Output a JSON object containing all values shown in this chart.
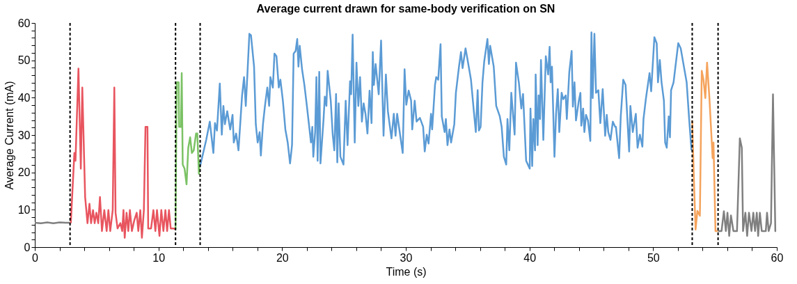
{
  "chart_data": {
    "type": "line",
    "title": "Average current drawn for same-body verification on SN",
    "xlabel": "Time (s)",
    "ylabel": "Average Current (mA)",
    "xlim": [
      0,
      60
    ],
    "ylim": [
      0,
      60
    ],
    "xticks": [
      0,
      {
        "value": 2,
        "label": null
      },
      {
        "value": 4,
        "label": null
      },
      {
        "value": 6,
        "label": null
      },
      {
        "value": 8,
        "label": null
      },
      10,
      {
        "value": 12,
        "label": null
      },
      {
        "value": 14,
        "label": null
      },
      {
        "value": 16,
        "label": null
      },
      {
        "value": 18,
        "label": null
      },
      20,
      {
        "value": 22,
        "label": null
      },
      {
        "value": 24,
        "label": null
      },
      {
        "value": 26,
        "label": null
      },
      {
        "value": 28,
        "label": null
      },
      30,
      {
        "value": 32,
        "label": null
      },
      {
        "value": 34,
        "label": null
      },
      {
        "value": 36,
        "label": null
      },
      {
        "value": 38,
        "label": null
      },
      40,
      {
        "value": 42,
        "label": null
      },
      {
        "value": 44,
        "label": null
      },
      {
        "value": 46,
        "label": null
      },
      {
        "value": 48,
        "label": null
      },
      50,
      {
        "value": 52,
        "label": null
      },
      {
        "value": 54,
        "label": null
      },
      {
        "value": 56,
        "label": null
      },
      {
        "value": 58,
        "label": null
      },
      60
    ],
    "yticks": [
      0,
      {
        "value": 2,
        "label": null
      },
      {
        "value": 4,
        "label": null
      },
      {
        "value": 6,
        "label": null
      },
      {
        "value": 8,
        "label": null
      },
      10,
      {
        "value": 12,
        "label": null
      },
      {
        "value": 14,
        "label": null
      },
      {
        "value": 16,
        "label": null
      },
      {
        "value": 18,
        "label": null
      },
      20,
      {
        "value": 22,
        "label": null
      },
      {
        "value": 24,
        "label": null
      },
      {
        "value": 26,
        "label": null
      },
      {
        "value": 28,
        "label": null
      },
      30,
      {
        "value": 32,
        "label": null
      },
      {
        "value": 34,
        "label": null
      },
      {
        "value": 36,
        "label": null
      },
      {
        "value": 38,
        "label": null
      },
      40,
      {
        "value": 42,
        "label": null
      },
      {
        "value": 44,
        "label": null
      },
      {
        "value": 46,
        "label": null
      },
      {
        "value": 48,
        "label": null
      },
      50,
      {
        "value": 52,
        "label": null
      },
      {
        "value": 54,
        "label": null
      },
      {
        "value": 56,
        "label": null
      },
      {
        "value": 58,
        "label": null
      },
      60
    ],
    "grid": false,
    "marker": "none",
    "line_style": "solid",
    "ref_lines": [
      {
        "axis": "x",
        "value": 2.85,
        "color": "#000000",
        "line_style": "dashed"
      },
      {
        "axis": "x",
        "value": 11.38,
        "color": "#000000",
        "line_style": "dashed"
      },
      {
        "axis": "x",
        "value": 13.37,
        "color": "#000000",
        "line_style": "dashed"
      },
      {
        "axis": "x",
        "value": 53.16,
        "color": "#000000",
        "line_style": "dashed"
      },
      {
        "axis": "x",
        "value": 55.25,
        "color": "#000000",
        "line_style": "dashed"
      }
    ],
    "series": [
      {
        "color": "#808080",
        "x": [
          0,
          0.5,
          1,
          1.5,
          2,
          2.5,
          2.85
        ],
        "values": [
          6.5,
          6.4,
          6.6,
          6.4,
          6.6,
          6.5,
          6.5
        ]
      },
      {
        "color": "#e8555f",
        "x": [
          2.91,
          3.2,
          3.29,
          3.53,
          3.72,
          3.84,
          4.07,
          4.26,
          4.42,
          4.55,
          4.71,
          4.84,
          4.98,
          5.13,
          5.27,
          5.43,
          5.62,
          5.81,
          5.95,
          6.1,
          6.3,
          6.43,
          6.53,
          6.69,
          6.92,
          7.07,
          7.17,
          7.27,
          7.42,
          7.56,
          7.69,
          7.85,
          8.04,
          8.24,
          8.37,
          8.53,
          8.66,
          8.82,
          8.95,
          9.11,
          9.17,
          9.4,
          9.59,
          9.75,
          9.88,
          10.08,
          10.23,
          10.4,
          10.56,
          10.7,
          10.85,
          10.99,
          11.24,
          11.38
        ],
        "values": [
          6.4,
          25.2,
          23.1,
          47.8,
          21,
          42.7,
          13.4,
          6.4,
          11.6,
          6.4,
          9.9,
          6.4,
          9.2,
          6.4,
          13.4,
          4.3,
          9.9,
          4.3,
          9.9,
          4.3,
          9.9,
          42.7,
          9.2,
          5,
          6.4,
          4.3,
          9.9,
          2.5,
          9.2,
          4.3,
          9.9,
          4.3,
          7.1,
          9.2,
          4.3,
          9.9,
          2.5,
          9.9,
          32.2,
          32.2,
          5,
          5,
          9.9,
          4.3,
          9.9,
          3,
          9.9,
          4.3,
          9.9,
          4.3,
          9.9,
          5,
          5,
          4.7
        ]
      },
      {
        "color": "#7bc265",
        "x": [
          11.38,
          11.47,
          11.63,
          11.67,
          11.82,
          11.88,
          11.96,
          12.11,
          12.27,
          12.41,
          12.56,
          12.7,
          12.85,
          13.04,
          13.14,
          13.27,
          13.37
        ],
        "values": [
          4.7,
          44.1,
          44.1,
          32.2,
          32.2,
          46.6,
          22.1,
          21,
          16.8,
          26.6,
          29.4,
          25.2,
          25.9,
          30.4,
          30.4,
          19.6,
          23.1
        ]
      },
      {
        "color": "#5b9bd5",
        "x": [
          13.37,
          13.86,
          14.15,
          14.44,
          14.57,
          14.73,
          14.96,
          15.12,
          15.25,
          15.37,
          15.56,
          15.8,
          15.99,
          16.09,
          16.28,
          16.47,
          16.61,
          16.76,
          16.92,
          17.06,
          17.19,
          17.35,
          17.48,
          17.73,
          17.87,
          18.02,
          18.18,
          18.28,
          18.45,
          18.61,
          18.8,
          18.95,
          19.05,
          19.25,
          19.38,
          19.54,
          19.73,
          19.86,
          20.06,
          20.26,
          20.45,
          20.64,
          20.8,
          20.93,
          21.09,
          21.22,
          21.32,
          21.42,
          21.61,
          21.8,
          22.0,
          22.19,
          22.33,
          22.44,
          22.52,
          22.67,
          22.77,
          22.87,
          23.0,
          23.1,
          23.35,
          23.45,
          23.58,
          23.68,
          23.93,
          24.09,
          24.22,
          24.36,
          24.46,
          24.57,
          24.71,
          24.96,
          25.14,
          25.29,
          25.49,
          25.58,
          25.7,
          25.87,
          26.01,
          26.16,
          26.3,
          26.45,
          26.59,
          26.74,
          26.9,
          27.07,
          27.23,
          27.33,
          27.42,
          27.56,
          27.81,
          28.0,
          28.2,
          28.39,
          28.55,
          28.84,
          29.03,
          29.17,
          29.3,
          29.55,
          29.75,
          29.9,
          30.04,
          30.23,
          30.43,
          30.52,
          30.72,
          30.87,
          31.14,
          31.4,
          31.53,
          31.69,
          31.84,
          32.04,
          32.13,
          32.36,
          32.46,
          32.62,
          32.81,
          32.91,
          33.14,
          33.24,
          33.37,
          33.53,
          33.66,
          33.92,
          34.05,
          34.3,
          34.46,
          34.59,
          34.83,
          34.98,
          35.27,
          35.5,
          35.66,
          35.81,
          35.91,
          36.05,
          36.2,
          36.34,
          36.6,
          36.72,
          36.82,
          37.11,
          37.31,
          37.6,
          37.75,
          37.93,
          38.12,
          38.22,
          38.37,
          38.53,
          38.8,
          38.91,
          39.15,
          39.34,
          39.48,
          39.73,
          40.02,
          40.08,
          40.22,
          40.31,
          40.45,
          40.5,
          40.66,
          40.74,
          40.85,
          40.93,
          41.12,
          41.32,
          41.51,
          41.63,
          41.71,
          41.82,
          42.02,
          42.15,
          42.29,
          42.41,
          42.6,
          42.73,
          42.93,
          43.02,
          43.22,
          43.41,
          43.51,
          43.64,
          43.76,
          43.99,
          44.12,
          44.19,
          44.34,
          44.44,
          44.57,
          44.73,
          44.92,
          45.01,
          45.11,
          45.25,
          45.38,
          45.57,
          45.73,
          45.92,
          46.12,
          46.25,
          46.37,
          46.55,
          46.74,
          46.93,
          46.99,
          47.25,
          47.38,
          47.58,
          47.77,
          48.06,
          48.16,
          48.35,
          48.6,
          48.74,
          48.93,
          49.13,
          49.22,
          49.42,
          49.71,
          49.84,
          50.1,
          50.29,
          50.39,
          50.54,
          50.68,
          50.87,
          50.97,
          51.1,
          51.26,
          51.36,
          51.45,
          51.65,
          52.03,
          52.23,
          52.43,
          52.71,
          52.91,
          53.1
        ],
        "values": [
          21.7,
          28.7,
          33.6,
          25.2,
          33.2,
          31.2,
          43.8,
          30.1,
          37.8,
          32.9,
          36.4,
          31.5,
          35.4,
          28,
          30.4,
          25.9,
          32.9,
          40.6,
          45.5,
          37.8,
          46.2,
          57.1,
          56.7,
          48.3,
          32.9,
          28,
          30.8,
          24.5,
          32.9,
          37.8,
          42.7,
          37.8,
          45.5,
          42.7,
          51.8,
          51.1,
          42.7,
          44.8,
          39.2,
          31.5,
          28,
          22.4,
          27.3,
          51.8,
          52.5,
          55.7,
          48.3,
          53.9,
          47.6,
          43.4,
          37.8,
          32.2,
          28,
          32.2,
          24.2,
          30.8,
          45.5,
          23.1,
          46.9,
          22.4,
          34.3,
          40.3,
          37.8,
          47.2,
          39.2,
          30.1,
          25.9,
          41,
          22.7,
          38.5,
          24.2,
          22.1,
          39.2,
          27.3,
          44.4,
          40.9,
          56.9,
          28,
          49.4,
          37.8,
          45.5,
          33.6,
          38.5,
          35.7,
          30.4,
          41.9,
          33.2,
          52.2,
          43.4,
          49,
          40.9,
          55.3,
          29.8,
          46.2,
          36.4,
          29.1,
          35.7,
          29.8,
          35.7,
          29.8,
          25.2,
          47.6,
          38.1,
          41.9,
          39.2,
          31.5,
          39.2,
          33.6,
          34.6,
          32.2,
          25.6,
          30.1,
          27.7,
          35.7,
          31.5,
          43.4,
          45.5,
          44.8,
          54.3,
          35,
          30.8,
          34.3,
          27.3,
          31.5,
          28,
          32.9,
          41.3,
          48.3,
          52.2,
          47.9,
          53.2,
          50.4,
          44.8,
          36.4,
          30.8,
          42,
          31.2,
          32.2,
          44.1,
          49.7,
          55.7,
          49,
          53.9,
          48.3,
          37.8,
          35,
          32.2,
          24.2,
          22.1,
          34.3,
          25.9,
          41.3,
          30.1,
          49.4,
          43.8,
          37.1,
          41,
          23.1,
          21,
          37.1,
          21.7,
          34.3,
          25.9,
          46.2,
          27.3,
          40.6,
          34.3,
          50.1,
          28.7,
          51.1,
          46.2,
          53.6,
          44.1,
          48.3,
          24.2,
          35.7,
          42.3,
          30.8,
          41.3,
          39.6,
          40.6,
          34.3,
          46.9,
          52.5,
          37.6,
          44.1,
          33.9,
          39.2,
          41.3,
          32.5,
          37.1,
          30.8,
          35.4,
          33.9,
          28.4,
          57.5,
          39.9,
          57.1,
          41.3,
          42,
          33.2,
          42.3,
          29.8,
          35.4,
          30.8,
          28.7,
          33.6,
          32.2,
          32.2,
          23.8,
          34.9,
          44.8,
          43.4,
          25.6,
          37.8,
          30.8,
          35.7,
          26.6,
          30.1,
          26.9,
          34.3,
          39.9,
          46.6,
          41.7,
          56.2,
          54.5,
          44.1,
          50.1,
          44.1,
          39.2,
          28,
          26.6,
          35,
          29.4,
          42,
          44.1,
          54.6,
          53.2,
          49.4,
          44.1,
          34.3,
          25.9
        ]
      },
      {
        "color": "#f5a35c",
        "x": [
          53.16,
          53.29,
          53.43,
          53.58,
          53.78,
          53.93,
          54.07,
          54.22,
          54.36,
          54.55,
          54.81,
          54.88,
          55.04,
          55.25
        ],
        "values": [
          33.9,
          18.8,
          4.7,
          9.7,
          8.4,
          47.2,
          44.8,
          39.9,
          49.4,
          39.9,
          23.8,
          28,
          4.3,
          4.3
        ]
      },
      {
        "color": "#808080",
        "x": [
          55.25,
          55.53,
          55.72,
          55.88,
          56.01,
          56.15,
          56.29,
          56.49,
          56.78,
          57.01,
          57.17,
          57.27,
          57.46,
          57.6,
          57.75,
          57.95,
          58.1,
          58.24,
          58.38,
          58.49,
          58.63,
          58.78,
          59.11,
          59.21,
          59.34,
          59.53,
          59.69,
          59.88,
          59.94
        ],
        "values": [
          4.3,
          4.3,
          9.6,
          4.3,
          9.2,
          3,
          8.5,
          4.3,
          4.3,
          29.1,
          26.6,
          4.3,
          9.2,
          3,
          9.2,
          4.3,
          9.2,
          4.3,
          9.2,
          3,
          9.2,
          4.3,
          4.3,
          9.2,
          4.3,
          6.4,
          40.9,
          4.3,
          4.3
        ]
      }
    ]
  }
}
